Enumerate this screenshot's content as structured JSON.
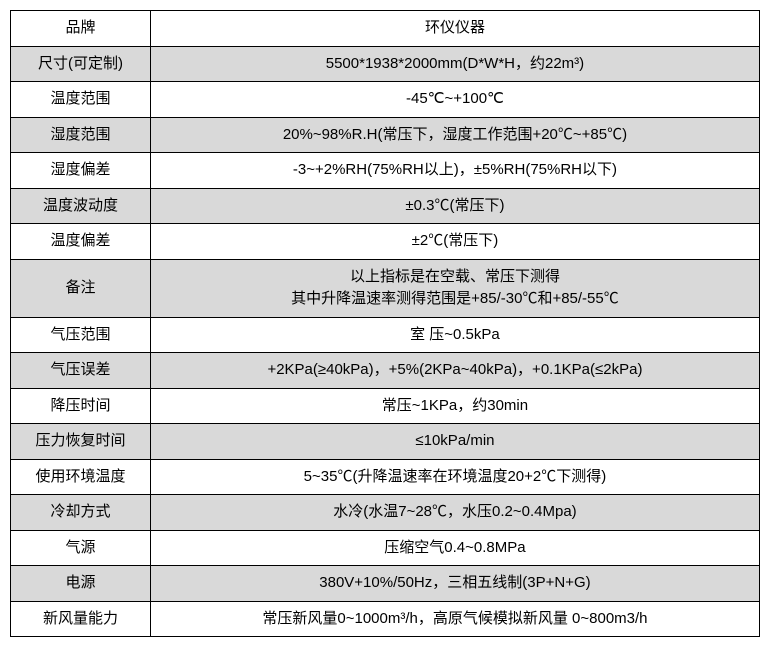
{
  "table": {
    "colors": {
      "shaded_bg": "#d9d9d9",
      "plain_bg": "#ffffff",
      "border": "#000000",
      "text": "#000000"
    },
    "font_size": 15,
    "col_widths": {
      "label": 140,
      "value": 610
    },
    "rows": [
      {
        "shaded": false,
        "label": "品牌",
        "value": "环仪仪器"
      },
      {
        "shaded": true,
        "label": "尺寸(可定制)",
        "value": "5500*1938*2000mm(D*W*H，约22m³)"
      },
      {
        "shaded": false,
        "label": "温度范围",
        "value": "-45℃~+100℃"
      },
      {
        "shaded": true,
        "label": "湿度范围",
        "value": "20%~98%R.H(常压下，湿度工作范围+20℃~+85℃)"
      },
      {
        "shaded": false,
        "label": "湿度偏差",
        "value": "-3~+2%RH(75%RH以上)，±5%RH(75%RH以下)"
      },
      {
        "shaded": true,
        "label": "温度波动度",
        "value": "±0.3℃(常压下)"
      },
      {
        "shaded": false,
        "label": "温度偏差",
        "value": "±2℃(常压下)"
      },
      {
        "shaded": true,
        "label": "备注",
        "value": "以上指标是在空载、常压下测得\n其中升降温速率测得范围是+85/-30℃和+85/-55℃",
        "multiline": true
      },
      {
        "shaded": false,
        "label": "气压范围",
        "value": "室 压~0.5kPa"
      },
      {
        "shaded": true,
        "label": "气压误差",
        "value": "+2KPa(≥40kPa)，+5%(2KPa~40kPa)，+0.1KPa(≤2kPa)"
      },
      {
        "shaded": false,
        "label": "降压时间",
        "value": "常压~1KPa，约30min"
      },
      {
        "shaded": true,
        "label": "压力恢复时间",
        "value": "≤10kPa/min"
      },
      {
        "shaded": false,
        "label": "使用环境温度",
        "value": "5~35℃(升降温速率在环境温度20+2℃下测得)"
      },
      {
        "shaded": true,
        "label": "冷却方式",
        "value": "水冷(水温7~28℃，水压0.2~0.4Mpa)"
      },
      {
        "shaded": false,
        "label": "气源",
        "value": "压缩空气0.4~0.8MPa"
      },
      {
        "shaded": true,
        "label": "电源",
        "value": "380V+10%/50Hz，三相五线制(3P+N+G)"
      },
      {
        "shaded": false,
        "label": "新风量能力",
        "value": "常压新风量0~1000m³/h，高原气候模拟新风量 0~800m3/h"
      }
    ]
  }
}
